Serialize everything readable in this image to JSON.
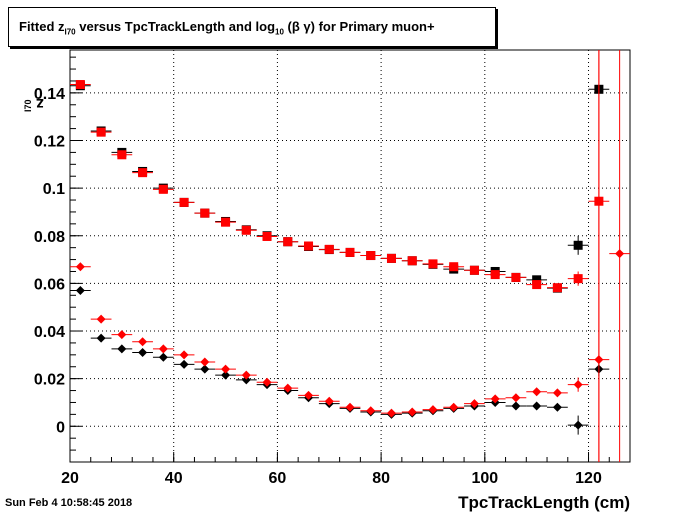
{
  "title_parts": {
    "pre": "Fitted  z",
    "sub1": "I70",
    "mid": "  versus TpcTrackLength and log",
    "sub2": "10",
    "post": "(β γ) for Primary muon+"
  },
  "timestamp": "Sun Feb  4 10:58:45 2018",
  "colors": {
    "black": "#000000",
    "red": "#ff0000",
    "grid": "#000000"
  },
  "chart_data": {
    "type": "scatter",
    "xlabel": "TpcTrackLength (cm)",
    "ylabel_main": "z",
    "ylabel_sub": "I70",
    "xlim": [
      20,
      128
    ],
    "ylim": [
      -0.015,
      0.158
    ],
    "xticks": [
      20,
      40,
      60,
      80,
      100,
      120
    ],
    "yticks": [
      0,
      0.02,
      0.04,
      0.06,
      0.08,
      0.1,
      0.12,
      0.14
    ],
    "ytick_labels": [
      "0",
      "0.02",
      "0.04",
      "0.06",
      "0.08",
      "0.1",
      "0.12",
      "0.14"
    ],
    "x_bin_halfwidth": 2,
    "series": [
      {
        "marker": "square",
        "color": "#000000",
        "x": [
          22,
          26,
          30,
          34,
          38,
          42,
          46,
          50,
          54,
          58,
          62,
          66,
          70,
          74,
          78,
          82,
          86,
          90,
          94,
          98,
          102,
          106,
          110,
          114,
          118,
          122
        ],
        "y": [
          0.143,
          0.124,
          0.115,
          0.107,
          0.1,
          0.094,
          0.0895,
          0.086,
          0.0825,
          0.08,
          0.0775,
          0.0755,
          0.0742,
          0.073,
          0.0717,
          0.0705,
          0.0695,
          0.068,
          0.066,
          0.0655,
          0.065,
          0.0625,
          0.0615,
          0.058,
          0.076,
          0.1415
        ],
        "yerr": [
          0.0005,
          0.0005,
          0.0005,
          0.0005,
          0.0005,
          0.0005,
          0.0005,
          0.0005,
          0.0005,
          0.0005,
          0.0005,
          0.0005,
          0.0005,
          0.0005,
          0.0005,
          0.0005,
          0.0005,
          0.0005,
          0.0005,
          0.0005,
          0.0005,
          0.0005,
          0.0008,
          0.0008,
          0.004,
          0.0
        ]
      },
      {
        "marker": "square",
        "color": "#ff0000",
        "x": [
          22,
          26,
          30,
          34,
          38,
          42,
          46,
          50,
          54,
          58,
          62,
          66,
          70,
          74,
          78,
          82,
          86,
          90,
          94,
          98,
          102,
          106,
          110,
          114,
          118,
          122
        ],
        "y": [
          0.1435,
          0.1235,
          0.114,
          0.1065,
          0.0995,
          0.094,
          0.0895,
          0.0857,
          0.0823,
          0.0797,
          0.0775,
          0.0757,
          0.0743,
          0.073,
          0.0717,
          0.0705,
          0.0695,
          0.0682,
          0.067,
          0.0655,
          0.0637,
          0.0625,
          0.0595,
          0.0582,
          0.062,
          0.0945
        ],
        "yerr": [
          0.0005,
          0.0005,
          0.0005,
          0.0005,
          0.0005,
          0.0005,
          0.0005,
          0.0005,
          0.0005,
          0.0005,
          0.0005,
          0.0005,
          0.0005,
          0.0005,
          0.0005,
          0.0005,
          0.0005,
          0.0005,
          0.0005,
          0.0005,
          0.0005,
          0.0005,
          0.0008,
          0.001,
          0.003,
          0.18
        ]
      },
      {
        "marker": "diamond",
        "color": "#000000",
        "x": [
          22,
          26,
          30,
          34,
          38,
          42,
          46,
          50,
          54,
          58,
          62,
          66,
          70,
          74,
          78,
          82,
          86,
          90,
          94,
          98,
          102,
          106,
          110,
          114,
          118,
          122
        ],
        "y": [
          0.057,
          0.037,
          0.0325,
          0.031,
          0.029,
          0.026,
          0.024,
          0.0215,
          0.0195,
          0.0175,
          0.015,
          0.012,
          0.0095,
          0.0075,
          0.006,
          0.005,
          0.0055,
          0.0065,
          0.0075,
          0.0085,
          0.01,
          0.0085,
          0.0085,
          0.008,
          0.0005,
          0.024
        ],
        "yerr": [
          0.0004,
          0.0004,
          0.0004,
          0.0004,
          0.0004,
          0.0004,
          0.0004,
          0.0004,
          0.0004,
          0.0004,
          0.0004,
          0.0004,
          0.0004,
          0.0004,
          0.0004,
          0.0004,
          0.0004,
          0.0004,
          0.0004,
          0.0004,
          0.0004,
          0.0006,
          0.0006,
          0.0008,
          0.004,
          0.003
        ]
      },
      {
        "marker": "diamond",
        "color": "#ff0000",
        "x": [
          22,
          26,
          30,
          34,
          38,
          42,
          46,
          50,
          54,
          58,
          62,
          66,
          70,
          74,
          78,
          82,
          86,
          90,
          94,
          98,
          102,
          106,
          110,
          114,
          118,
          122,
          126
        ],
        "y": [
          0.067,
          0.045,
          0.0385,
          0.0355,
          0.0325,
          0.03,
          0.027,
          0.024,
          0.0215,
          0.0185,
          0.016,
          0.013,
          0.0105,
          0.008,
          0.0065,
          0.0055,
          0.006,
          0.007,
          0.008,
          0.0095,
          0.0115,
          0.012,
          0.0145,
          0.014,
          0.0175,
          0.028,
          0.0725
        ],
        "yerr": [
          0.0004,
          0.0004,
          0.0004,
          0.0004,
          0.0004,
          0.0004,
          0.0004,
          0.0004,
          0.0004,
          0.0004,
          0.0004,
          0.0004,
          0.0004,
          0.0004,
          0.0004,
          0.0004,
          0.0004,
          0.0004,
          0.0004,
          0.0004,
          0.0004,
          0.0006,
          0.0008,
          0.001,
          0.003,
          0.18,
          0.18
        ]
      }
    ]
  }
}
